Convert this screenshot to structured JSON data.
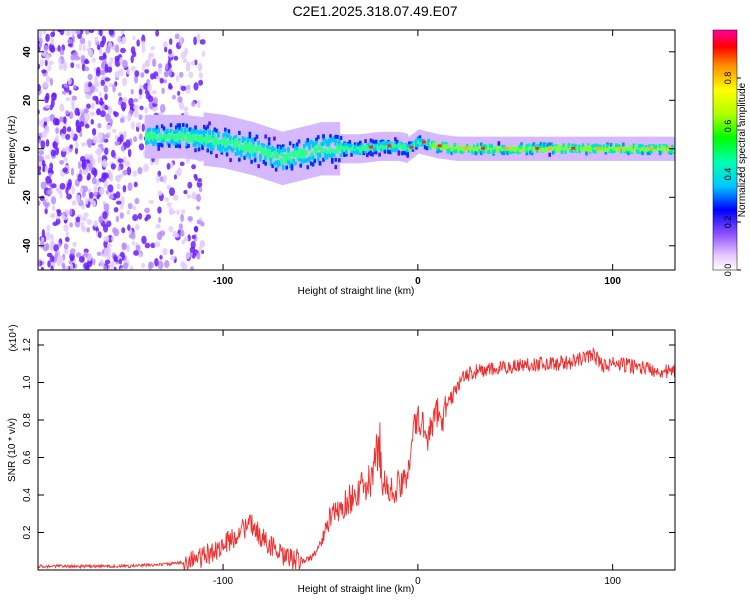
{
  "title": "C2E1.2025.318.07.49.E07",
  "chart_data": [
    {
      "type": "heatmap",
      "xlabel": "Height of straight line (km)",
      "ylabel": "Frequency (Hz)",
      "xlim": [
        -195,
        132
      ],
      "ylim": [
        -50,
        49
      ],
      "xticks": [
        -100,
        0,
        100
      ],
      "yticks": [
        -40,
        -20,
        0,
        20,
        40
      ],
      "ridge": {
        "x": [
          -140,
          -120,
          -100,
          -85,
          -70,
          -60,
          -50,
          -40,
          -30,
          -20,
          -10,
          -5,
          0,
          5,
          10,
          20,
          40,
          60,
          80,
          100,
          120,
          132
        ],
        "frequency": [
          5,
          5,
          3,
          0,
          -4,
          -2,
          0,
          0,
          0,
          1,
          1,
          0,
          3,
          2,
          1,
          0,
          0,
          0,
          0,
          0,
          0,
          0
        ]
      },
      "colorbar": {
        "label": "Normalized spectral amplitude",
        "range": [
          0,
          1
        ],
        "ticks": [
          0.0,
          0.2,
          0.4,
          0.6,
          0.8
        ]
      }
    },
    {
      "type": "line",
      "xlabel": "Height of straight line (km)",
      "ylabel": "SNR (10 * v/v)",
      "scale_label": "(x10⁴)",
      "xlim": [
        -195,
        132
      ],
      "ylim": [
        0,
        1.28
      ],
      "xticks": [
        -100,
        0,
        100
      ],
      "yticks": [
        0.2,
        0.4,
        0.6,
        0.8,
        1.0,
        1.2
      ],
      "color": "#f03030",
      "series": [
        {
          "name": "SNR",
          "x": [
            -195,
            -170,
            -150,
            -130,
            -120,
            -110,
            -100,
            -95,
            -90,
            -85,
            -80,
            -75,
            -70,
            -65,
            -60,
            -55,
            -50,
            -45,
            -40,
            -35,
            -30,
            -25,
            -22,
            -20,
            -18,
            -15,
            -10,
            -8,
            -5,
            -3,
            0,
            3,
            5,
            8,
            10,
            13,
            15,
            18,
            20,
            25,
            30,
            40,
            50,
            60,
            70,
            80,
            85,
            90,
            95,
            100,
            110,
            120,
            132
          ],
          "y": [
            0.02,
            0.02,
            0.02,
            0.03,
            0.04,
            0.07,
            0.13,
            0.17,
            0.22,
            0.24,
            0.17,
            0.13,
            0.07,
            0.06,
            0.05,
            0.06,
            0.14,
            0.28,
            0.32,
            0.38,
            0.42,
            0.46,
            0.55,
            0.7,
            0.5,
            0.4,
            0.45,
            0.43,
            0.55,
            0.72,
            0.8,
            0.76,
            0.72,
            0.78,
            0.85,
            0.82,
            0.88,
            0.93,
            0.98,
            1.04,
            1.06,
            1.07,
            1.09,
            1.1,
            1.1,
            1.11,
            1.13,
            1.15,
            1.09,
            1.1,
            1.09,
            1.07,
            1.05
          ]
        }
      ]
    }
  ]
}
